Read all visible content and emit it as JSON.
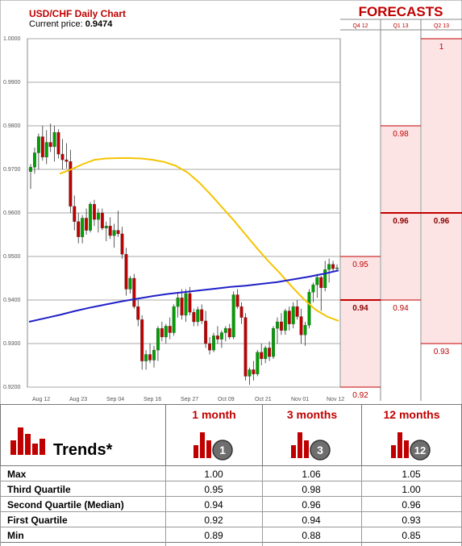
{
  "header": {
    "chart_title": "USD/CHF Daily Chart",
    "price_label": "Current price:",
    "price_value": "0.9474",
    "forecasts_title": "FORECASTS"
  },
  "chart_data": {
    "type": "candlestick",
    "title": "USD/CHF Daily Chart",
    "ylim": [
      0.92,
      1.0
    ],
    "y_ticks": [
      "1.0000",
      "0.9900",
      "0.9800",
      "0.9700",
      "0.9600",
      "0.9500",
      "0.9400",
      "0.9300",
      "0.9200"
    ],
    "x_ticks": [
      "Aug 12",
      "Aug 23",
      "Sep 04",
      "Sep 16",
      "Sep 27",
      "Oct 09",
      "Oct 21",
      "Nov 01",
      "Nov 12"
    ],
    "grid": true,
    "up_color": "#00a000",
    "down_color": "#c00000",
    "candles": [
      {
        "o": 0.9695,
        "h": 0.9712,
        "l": 0.9655,
        "c": 0.9705
      },
      {
        "o": 0.9705,
        "h": 0.975,
        "l": 0.969,
        "c": 0.9738
      },
      {
        "o": 0.9738,
        "h": 0.9782,
        "l": 0.97,
        "c": 0.9775
      },
      {
        "o": 0.9775,
        "h": 0.98,
        "l": 0.972,
        "c": 0.9728
      },
      {
        "o": 0.9728,
        "h": 0.979,
        "l": 0.9712,
        "c": 0.9762
      },
      {
        "o": 0.9762,
        "h": 0.9805,
        "l": 0.974,
        "c": 0.9752
      },
      {
        "o": 0.9752,
        "h": 0.98,
        "l": 0.9718,
        "c": 0.9785
      },
      {
        "o": 0.9785,
        "h": 0.9792,
        "l": 0.9725,
        "c": 0.9735
      },
      {
        "o": 0.9735,
        "h": 0.977,
        "l": 0.97,
        "c": 0.9722
      },
      {
        "o": 0.9722,
        "h": 0.976,
        "l": 0.9702,
        "c": 0.9718
      },
      {
        "o": 0.9718,
        "h": 0.9745,
        "l": 0.96,
        "c": 0.9615
      },
      {
        "o": 0.9615,
        "h": 0.964,
        "l": 0.956,
        "c": 0.958
      },
      {
        "o": 0.958,
        "h": 0.96,
        "l": 0.953,
        "c": 0.9545
      },
      {
        "o": 0.9545,
        "h": 0.9595,
        "l": 0.953,
        "c": 0.9588
      },
      {
        "o": 0.9588,
        "h": 0.961,
        "l": 0.955,
        "c": 0.956
      },
      {
        "o": 0.956,
        "h": 0.9625,
        "l": 0.9555,
        "c": 0.962
      },
      {
        "o": 0.962,
        "h": 0.963,
        "l": 0.957,
        "c": 0.9585
      },
      {
        "o": 0.9585,
        "h": 0.961,
        "l": 0.9555,
        "c": 0.96
      },
      {
        "o": 0.96,
        "h": 0.961,
        "l": 0.956,
        "c": 0.9565
      },
      {
        "o": 0.9565,
        "h": 0.958,
        "l": 0.9535,
        "c": 0.957
      },
      {
        "o": 0.957,
        "h": 0.959,
        "l": 0.954,
        "c": 0.9548
      },
      {
        "o": 0.9548,
        "h": 0.9575,
        "l": 0.952,
        "c": 0.956
      },
      {
        "o": 0.956,
        "h": 0.9605,
        "l": 0.9545,
        "c": 0.9552
      },
      {
        "o": 0.9552,
        "h": 0.9568,
        "l": 0.9495,
        "c": 0.9505
      },
      {
        "o": 0.9505,
        "h": 0.952,
        "l": 0.941,
        "c": 0.9425
      },
      {
        "o": 0.9425,
        "h": 0.9455,
        "l": 0.9415,
        "c": 0.945
      },
      {
        "o": 0.945,
        "h": 0.946,
        "l": 0.938,
        "c": 0.9385
      },
      {
        "o": 0.9385,
        "h": 0.94,
        "l": 0.934,
        "c": 0.9355
      },
      {
        "o": 0.9355,
        "h": 0.9365,
        "l": 0.924,
        "c": 0.926
      },
      {
        "o": 0.926,
        "h": 0.9285,
        "l": 0.924,
        "c": 0.9275
      },
      {
        "o": 0.9275,
        "h": 0.93,
        "l": 0.9255,
        "c": 0.9262
      },
      {
        "o": 0.9262,
        "h": 0.9295,
        "l": 0.9245,
        "c": 0.9285
      },
      {
        "o": 0.9285,
        "h": 0.934,
        "l": 0.926,
        "c": 0.9335
      },
      {
        "o": 0.9335,
        "h": 0.935,
        "l": 0.9305,
        "c": 0.9315
      },
      {
        "o": 0.9315,
        "h": 0.9345,
        "l": 0.93,
        "c": 0.934
      },
      {
        "o": 0.934,
        "h": 0.936,
        "l": 0.931,
        "c": 0.9325
      },
      {
        "o": 0.9325,
        "h": 0.939,
        "l": 0.9318,
        "c": 0.9385
      },
      {
        "o": 0.9385,
        "h": 0.9415,
        "l": 0.936,
        "c": 0.9405
      },
      {
        "o": 0.9405,
        "h": 0.9425,
        "l": 0.9355,
        "c": 0.9365
      },
      {
        "o": 0.9365,
        "h": 0.9425,
        "l": 0.935,
        "c": 0.9415
      },
      {
        "o": 0.9415,
        "h": 0.943,
        "l": 0.9365,
        "c": 0.9372
      },
      {
        "o": 0.9372,
        "h": 0.938,
        "l": 0.934,
        "c": 0.935
      },
      {
        "o": 0.935,
        "h": 0.9385,
        "l": 0.934,
        "c": 0.9378
      },
      {
        "o": 0.9378,
        "h": 0.939,
        "l": 0.9345,
        "c": 0.9352
      },
      {
        "o": 0.9352,
        "h": 0.9375,
        "l": 0.929,
        "c": 0.93
      },
      {
        "o": 0.93,
        "h": 0.9315,
        "l": 0.9275,
        "c": 0.9285
      },
      {
        "o": 0.9285,
        "h": 0.9325,
        "l": 0.928,
        "c": 0.9318
      },
      {
        "o": 0.9318,
        "h": 0.934,
        "l": 0.93,
        "c": 0.931
      },
      {
        "o": 0.931,
        "h": 0.933,
        "l": 0.929,
        "c": 0.9325
      },
      {
        "o": 0.9325,
        "h": 0.934,
        "l": 0.9305,
        "c": 0.9335
      },
      {
        "o": 0.9335,
        "h": 0.9345,
        "l": 0.931,
        "c": 0.9315
      },
      {
        "o": 0.9315,
        "h": 0.942,
        "l": 0.931,
        "c": 0.9412
      },
      {
        "o": 0.9412,
        "h": 0.9425,
        "l": 0.938,
        "c": 0.9385
      },
      {
        "o": 0.9385,
        "h": 0.9395,
        "l": 0.9345,
        "c": 0.936
      },
      {
        "o": 0.936,
        "h": 0.937,
        "l": 0.9215,
        "c": 0.9225
      },
      {
        "o": 0.9225,
        "h": 0.9245,
        "l": 0.9205,
        "c": 0.924
      },
      {
        "o": 0.924,
        "h": 0.926,
        "l": 0.9215,
        "c": 0.923
      },
      {
        "o": 0.923,
        "h": 0.9285,
        "l": 0.9225,
        "c": 0.928
      },
      {
        "o": 0.928,
        "h": 0.93,
        "l": 0.925,
        "c": 0.9265
      },
      {
        "o": 0.9265,
        "h": 0.9295,
        "l": 0.9255,
        "c": 0.929
      },
      {
        "o": 0.929,
        "h": 0.9305,
        "l": 0.926,
        "c": 0.927
      },
      {
        "o": 0.927,
        "h": 0.934,
        "l": 0.9265,
        "c": 0.9335
      },
      {
        "o": 0.9335,
        "h": 0.936,
        "l": 0.93,
        "c": 0.935
      },
      {
        "o": 0.935,
        "h": 0.937,
        "l": 0.932,
        "c": 0.933
      },
      {
        "o": 0.933,
        "h": 0.938,
        "l": 0.932,
        "c": 0.9375
      },
      {
        "o": 0.9375,
        "h": 0.9385,
        "l": 0.933,
        "c": 0.9345
      },
      {
        "o": 0.9345,
        "h": 0.9395,
        "l": 0.9335,
        "c": 0.9385
      },
      {
        "o": 0.9385,
        "h": 0.94,
        "l": 0.9355,
        "c": 0.9362
      },
      {
        "o": 0.9362,
        "h": 0.938,
        "l": 0.93,
        "c": 0.932
      },
      {
        "o": 0.932,
        "h": 0.935,
        "l": 0.9295,
        "c": 0.9342
      },
      {
        "o": 0.9342,
        "h": 0.9425,
        "l": 0.9335,
        "c": 0.9418
      },
      {
        "o": 0.9418,
        "h": 0.944,
        "l": 0.9395,
        "c": 0.9435
      },
      {
        "o": 0.9435,
        "h": 0.946,
        "l": 0.9405,
        "c": 0.9452
      },
      {
        "o": 0.9452,
        "h": 0.9455,
        "l": 0.9375,
        "c": 0.9428
      },
      {
        "o": 0.9428,
        "h": 0.949,
        "l": 0.942,
        "c": 0.947
      },
      {
        "o": 0.947,
        "h": 0.9495,
        "l": 0.944,
        "c": 0.9482
      },
      {
        "o": 0.9482,
        "h": 0.949,
        "l": 0.9465,
        "c": 0.9472
      },
      {
        "o": 0.9472,
        "h": 0.9482,
        "l": 0.9468,
        "c": 0.9474
      }
    ],
    "ma_short": {
      "color": "#f5c400",
      "values": [
        0.969,
        0.97,
        0.9712,
        0.9722,
        0.9725,
        0.9726,
        0.9726,
        0.9725,
        0.9722,
        0.9717,
        0.9708,
        0.9693,
        0.967,
        0.9642,
        0.9612,
        0.9582,
        0.955,
        0.9518,
        0.9488,
        0.946,
        0.943,
        0.9402,
        0.9378,
        0.9362,
        0.9352
      ]
    },
    "ma_long": {
      "color": "#2020c8",
      "values": [
        0.935,
        0.9358,
        0.9366,
        0.9375,
        0.9383,
        0.939,
        0.9397,
        0.9403,
        0.9409,
        0.9414,
        0.9418,
        0.9422,
        0.9426,
        0.943,
        0.9433,
        0.9437,
        0.9441,
        0.9447,
        0.9453,
        0.946,
        0.9468
      ]
    },
    "forecast_columns": [
      {
        "label": "Q4 12",
        "values": [
          {
            "v": 0.95,
            "t": "0.95"
          },
          {
            "v": 0.94,
            "t": "0.94",
            "median": true
          },
          {
            "v": 0.92,
            "t": "0.92"
          }
        ],
        "band": [
          0.92,
          0.95
        ]
      },
      {
        "label": "Q1 13",
        "values": [
          {
            "v": 0.98,
            "t": "0.98"
          },
          {
            "v": 0.96,
            "t": "0.96",
            "median": true
          },
          {
            "v": 0.94,
            "t": "0.94"
          }
        ],
        "band": [
          0.94,
          0.98
        ]
      },
      {
        "label": "Q2 13",
        "values": [
          {
            "v": 1.0,
            "t": "1"
          },
          {
            "v": 0.96,
            "t": "0.96",
            "median": true
          },
          {
            "v": 0.93,
            "t": "0.93"
          }
        ],
        "band": [
          0.93,
          1.0
        ]
      }
    ]
  },
  "trends": {
    "label": "Trends*",
    "columns": [
      {
        "title": "1 month",
        "badge": "1"
      },
      {
        "title": "3 months",
        "badge": "3"
      },
      {
        "title": "12 months",
        "badge": "12"
      }
    ],
    "rows": [
      {
        "label": "Max",
        "values": [
          "1.00",
          "1.06",
          "1.05"
        ]
      },
      {
        "label": "Third Quartile",
        "values": [
          "0.95",
          "0.98",
          "1.00"
        ]
      },
      {
        "label": "Second Quartile (Median)",
        "values": [
          "0.94",
          "0.96",
          "0.96"
        ]
      },
      {
        "label": "First Quartile",
        "values": [
          "0.92",
          "0.94",
          "0.93"
        ]
      },
      {
        "label": "Min",
        "values": [
          "0.89",
          "0.88",
          "0.85"
        ]
      }
    ]
  }
}
